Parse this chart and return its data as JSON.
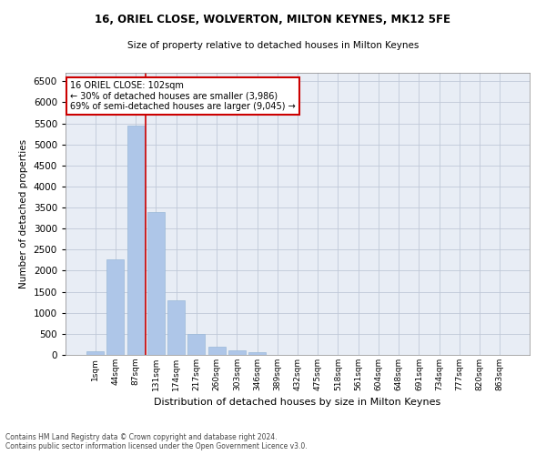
{
  "title1": "16, ORIEL CLOSE, WOLVERTON, MILTON KEYNES, MK12 5FE",
  "title2": "Size of property relative to detached houses in Milton Keynes",
  "xlabel": "Distribution of detached houses by size in Milton Keynes",
  "ylabel": "Number of detached properties",
  "footnote": "Contains HM Land Registry data © Crown copyright and database right 2024.\nContains public sector information licensed under the Open Government Licence v3.0.",
  "bar_labels": [
    "1sqm",
    "44sqm",
    "87sqm",
    "131sqm",
    "174sqm",
    "217sqm",
    "260sqm",
    "303sqm",
    "346sqm",
    "389sqm",
    "432sqm",
    "475sqm",
    "518sqm",
    "561sqm",
    "604sqm",
    "648sqm",
    "691sqm",
    "734sqm",
    "777sqm",
    "820sqm",
    "863sqm"
  ],
  "bar_values": [
    80,
    2280,
    5450,
    3390,
    1300,
    490,
    200,
    110,
    75,
    0,
    0,
    0,
    0,
    0,
    0,
    0,
    0,
    0,
    0,
    0,
    0
  ],
  "bar_color": "#aec6e8",
  "bar_edge_color": "#9ab8d8",
  "grid_color": "#c0c8d8",
  "background_color": "#e8edf5",
  "vline_color": "#cc0000",
  "annotation_text": "16 ORIEL CLOSE: 102sqm\n← 30% of detached houses are smaller (3,986)\n69% of semi-detached houses are larger (9,045) →",
  "annotation_box_color": "#ffffff",
  "annotation_box_edge": "#cc0000",
  "ylim": [
    0,
    6700
  ],
  "yticks": [
    0,
    500,
    1000,
    1500,
    2000,
    2500,
    3000,
    3500,
    4000,
    4500,
    5000,
    5500,
    6000,
    6500
  ]
}
